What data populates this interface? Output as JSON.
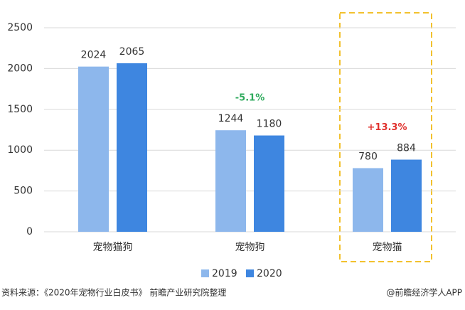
{
  "chart_data": {
    "type": "bar",
    "categories": [
      "宠物猫狗",
      "宠物狗",
      "宠物猫"
    ],
    "series": [
      {
        "name": "2019",
        "color": "#8db7ec",
        "values": [
          2024,
          1244,
          780
        ]
      },
      {
        "name": "2020",
        "color": "#3e86e0",
        "values": [
          2065,
          1180,
          884
        ]
      }
    ],
    "ylim": [
      0,
      2500
    ],
    "yticks": [
      0,
      500,
      1000,
      1500,
      2000,
      2500
    ],
    "grid": true,
    "annotations": [
      {
        "text": "-5.1%",
        "color": "#2eaa5c"
      },
      {
        "text": "+13.3%",
        "color": "#e0312d"
      }
    ],
    "legend": "bottom",
    "source": "资料来源：《2020年宠物行业白皮书》 前瞻产业研究院整理",
    "credit": "@前瞻经济学人APP"
  }
}
